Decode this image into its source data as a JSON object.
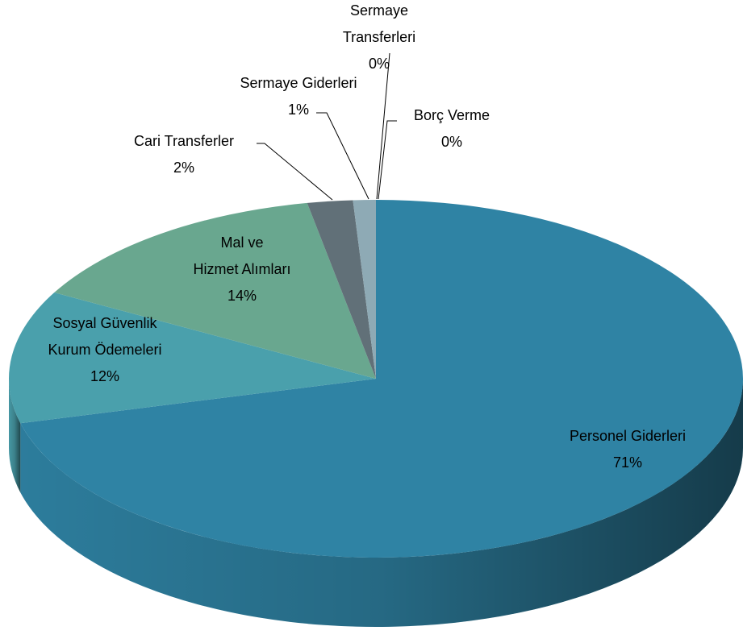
{
  "chart_data": {
    "type": "pie3d",
    "categories": [
      "Personel Giderleri",
      "Sosyal Güvenlik Kurum Ödemeleri",
      "Mal ve Hizmet Alımları",
      "Cari Transferler",
      "Sermaye Giderleri",
      "Sermaye Transferleri",
      "Borç Verme"
    ],
    "values": [
      71,
      12,
      14,
      2,
      1,
      0,
      0
    ],
    "value_labels": [
      "71%",
      "12%",
      "14%",
      "2%",
      "1%",
      "0%",
      "0%"
    ],
    "colors": [
      "#2f83a4",
      "#4aa0ac",
      "#69a78f",
      "#617078",
      "#8eaab5",
      "#a9bfc7",
      "#b8ccd3"
    ]
  }
}
